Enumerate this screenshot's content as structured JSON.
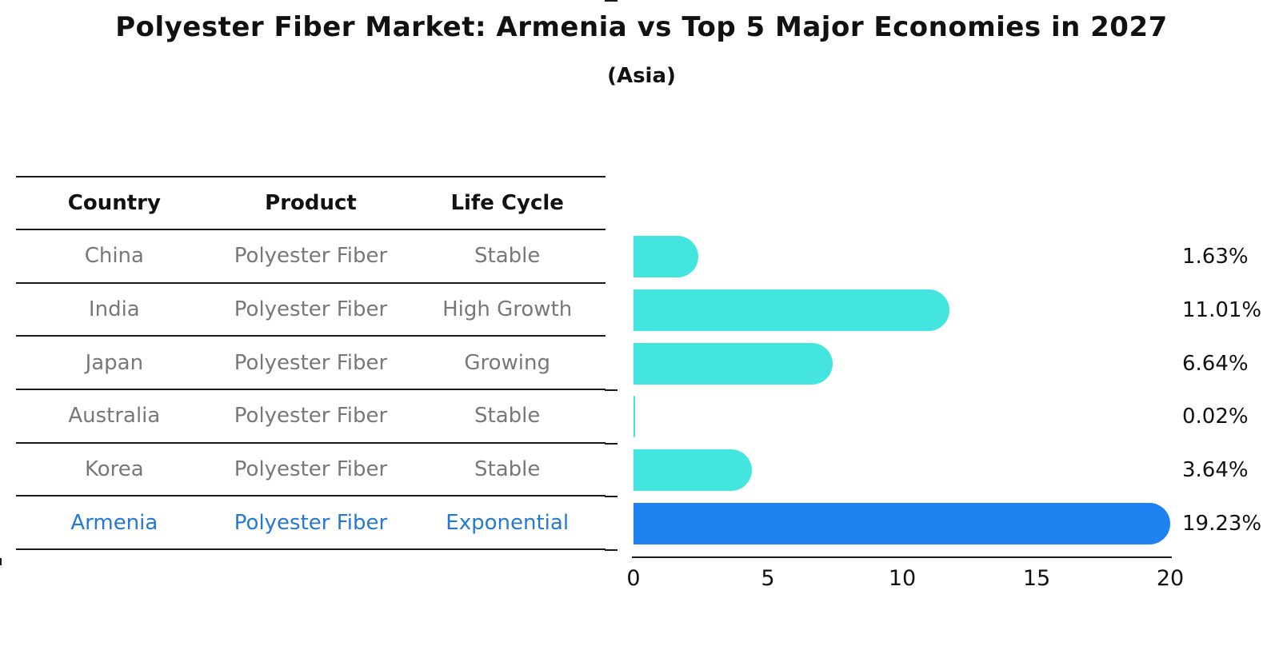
{
  "title": "Polyester Fiber Market: Armenia vs Top 5 Major Economies in 2027",
  "subtitle": "(Asia)",
  "colors": {
    "bar_default": "#44e4df",
    "bar_highlight": "#1e82f0",
    "table_text": "#787878",
    "highlight_text": "#2578d5",
    "line": "#1a1a1a"
  },
  "table": {
    "headers": [
      "Country",
      "Product",
      "Life Cycle"
    ],
    "rows": [
      {
        "country": "China",
        "product": "Polyester Fiber",
        "life_cycle": "Stable"
      },
      {
        "country": "India",
        "product": "Polyester Fiber",
        "life_cycle": "High Growth"
      },
      {
        "country": "Japan",
        "product": "Polyester Fiber",
        "life_cycle": "Growing"
      },
      {
        "country": "Australia",
        "product": "Polyester Fiber",
        "life_cycle": "Stable"
      },
      {
        "country": "Korea",
        "product": "Polyester Fiber",
        "life_cycle": "Stable"
      },
      {
        "country": "Armenia",
        "product": "Polyester Fiber",
        "life_cycle": "Exponential"
      }
    ]
  },
  "chart_data": {
    "type": "bar",
    "orientation": "horizontal",
    "title": "Polyester Fiber Market: Armenia vs Top 5 Major Economies in 2027 (Asia)",
    "categories": [
      "China",
      "India",
      "Japan",
      "Australia",
      "Korea",
      "Armenia"
    ],
    "values": [
      1.63,
      11.01,
      6.64,
      0.02,
      3.64,
      19.23
    ],
    "value_labels": [
      "1.63%",
      "11.01%",
      "6.64%",
      "0.02%",
      "3.64%",
      "19.23%"
    ],
    "highlight_index": 5,
    "xlim": [
      0,
      20
    ],
    "x_ticks": [
      "0",
      "5",
      "10",
      "15",
      "20"
    ],
    "grid": false,
    "legend": false
  }
}
